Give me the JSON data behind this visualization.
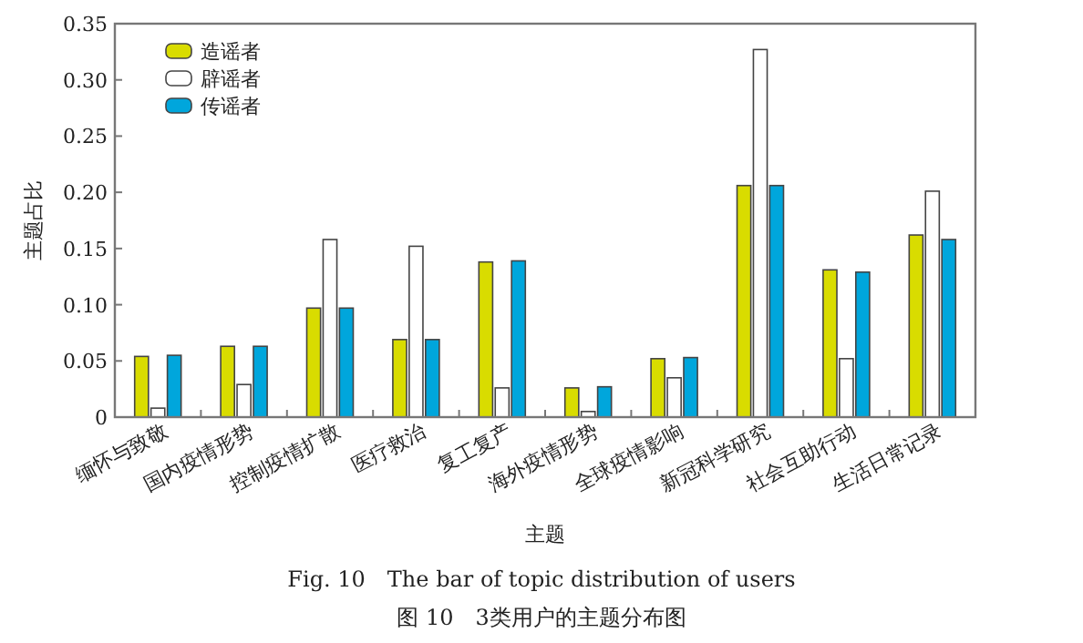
{
  "chart_data": {
    "type": "bar",
    "xlabel": "主题",
    "ylabel": "主题占比",
    "categories": [
      "缅怀与致敬",
      "国内疫情形势",
      "控制疫情扩散",
      "医疗救治",
      "复工复产",
      "海外疫情形势",
      "全球疫情影响",
      "新冠科学研究",
      "社会互助行动",
      "生活日常记录"
    ],
    "series": [
      {
        "name": "造谣者",
        "color": "#d9dc00",
        "values": [
          0.054,
          0.063,
          0.097,
          0.069,
          0.138,
          0.026,
          0.052,
          0.206,
          0.131,
          0.162
        ]
      },
      {
        "name": "辟谣者",
        "color": "#ffffff",
        "values": [
          0.008,
          0.029,
          0.158,
          0.152,
          0.026,
          0.005,
          0.035,
          0.327,
          0.052,
          0.201
        ]
      },
      {
        "name": "传谣者",
        "color": "#00a6dc",
        "values": [
          0.055,
          0.063,
          0.097,
          0.069,
          0.139,
          0.027,
          0.053,
          0.206,
          0.129,
          0.158
        ]
      }
    ],
    "ylim": [
      0,
      0.35
    ],
    "yticks": [
      0,
      0.05,
      {
        "value": 0.1,
        "label": "0.10"
      },
      0.15,
      {
        "value": 0.2,
        "label": "0.20"
      },
      0.25,
      {
        "value": 0.3,
        "label": "0.30"
      },
      0.35
    ],
    "legend": "top left",
    "annotations": [
      "Fig. 10　The bar of topic distribution of users",
      "图 10　3类用户的主题分布图"
    ]
  }
}
